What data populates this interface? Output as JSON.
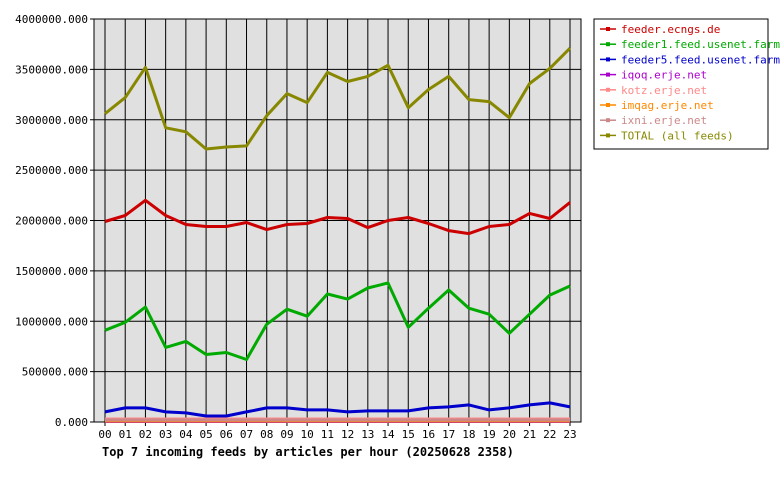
{
  "chart_data": {
    "type": "line",
    "title": "Top 7 incoming feeds by articles per hour (20250628 2358)",
    "xlabel": "",
    "ylabel": "",
    "categories": [
      "00",
      "01",
      "02",
      "03",
      "04",
      "05",
      "06",
      "07",
      "08",
      "09",
      "10",
      "11",
      "12",
      "13",
      "14",
      "15",
      "16",
      "17",
      "18",
      "19",
      "20",
      "21",
      "22",
      "23"
    ],
    "ylim": [
      0,
      4000000
    ],
    "yticks": [
      0,
      500000,
      1000000,
      1500000,
      2000000,
      2500000,
      3000000,
      3500000,
      4000000
    ],
    "ytick_labels": [
      "0.000",
      "500000.000",
      "1000000.000",
      "1500000.000",
      "2000000.000",
      "2500000.000",
      "3000000.000",
      "3500000.000",
      "4000000.000"
    ],
    "grid": true,
    "legend_position": "right",
    "series": [
      {
        "name": "feeder.ecngs.de",
        "color": "#cc0000",
        "values": [
          1990000,
          2050000,
          2200000,
          2050000,
          1960000,
          1940000,
          1940000,
          1980000,
          1910000,
          1960000,
          1970000,
          2030000,
          2020000,
          1930000,
          2000000,
          2030000,
          1970000,
          1900000,
          1870000,
          1940000,
          1960000,
          2070000,
          2020000,
          2180000
        ]
      },
      {
        "name": "feeder1.feed.usenet.farm",
        "color": "#00aa00",
        "values": [
          910000,
          990000,
          1140000,
          740000,
          800000,
          670000,
          690000,
          620000,
          970000,
          1120000,
          1050000,
          1270000,
          1220000,
          1330000,
          1380000,
          940000,
          1130000,
          1310000,
          1130000,
          1070000,
          880000,
          1070000,
          1260000,
          1350000
        ]
      },
      {
        "name": "feeder5.feed.usenet.farm",
        "color": "#0000cc",
        "values": [
          100000,
          140000,
          140000,
          100000,
          90000,
          60000,
          60000,
          100000,
          140000,
          140000,
          120000,
          120000,
          100000,
          110000,
          110000,
          110000,
          140000,
          150000,
          170000,
          120000,
          140000,
          170000,
          190000,
          150000
        ]
      },
      {
        "name": "iqoq.erje.net",
        "color": "#aa00cc",
        "values": [
          5000,
          5000,
          5000,
          5000,
          5000,
          5000,
          5000,
          5000,
          5000,
          5000,
          5000,
          5000,
          5000,
          5000,
          5000,
          5000,
          5000,
          5000,
          5000,
          5000,
          5000,
          5000,
          5000,
          5000
        ]
      },
      {
        "name": "kotz.erje.net",
        "color": "#ff8888",
        "values": [
          30000,
          30000,
          30000,
          30000,
          30000,
          30000,
          30000,
          30000,
          30000,
          30000,
          30000,
          30000,
          30000,
          30000,
          30000,
          30000,
          30000,
          30000,
          30000,
          30000,
          30000,
          30000,
          30000,
          30000
        ]
      },
      {
        "name": "imqag.erje.net",
        "color": "#ff8800",
        "values": [
          10000,
          10000,
          10000,
          10000,
          10000,
          10000,
          10000,
          10000,
          10000,
          10000,
          10000,
          10000,
          10000,
          10000,
          10000,
          10000,
          10000,
          10000,
          10000,
          10000,
          10000,
          10000,
          10000,
          10000
        ]
      },
      {
        "name": "ixni.erje.net",
        "color": "#cc8888",
        "values": [
          20000,
          20000,
          20000,
          20000,
          20000,
          20000,
          20000,
          20000,
          20000,
          20000,
          20000,
          20000,
          20000,
          20000,
          20000,
          20000,
          20000,
          20000,
          20000,
          20000,
          20000,
          20000,
          20000,
          20000
        ]
      },
      {
        "name": "TOTAL (all feeds)",
        "color": "#888800",
        "values": [
          3060000,
          3220000,
          3520000,
          2920000,
          2880000,
          2710000,
          2730000,
          2740000,
          3040000,
          3260000,
          3170000,
          3470000,
          3380000,
          3430000,
          3540000,
          3120000,
          3300000,
          3430000,
          3200000,
          3180000,
          3020000,
          3360000,
          3510000,
          3710000
        ]
      }
    ]
  }
}
